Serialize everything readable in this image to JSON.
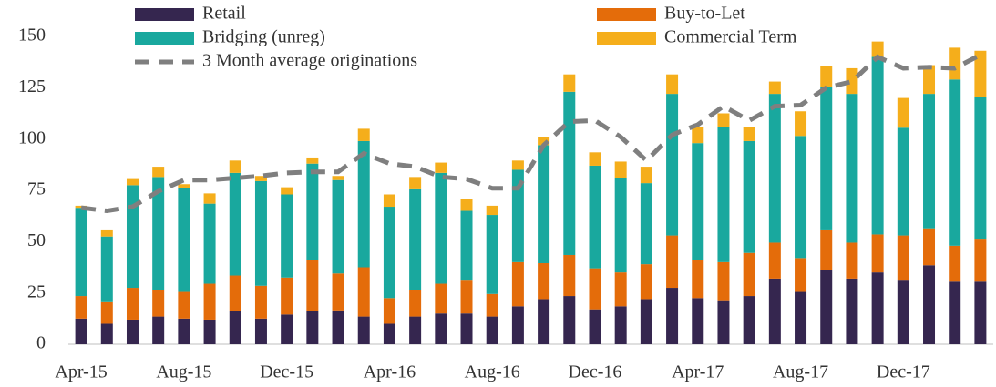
{
  "chart_data": {
    "type": "bar",
    "categories": [
      "Apr-15",
      null,
      null,
      null,
      "Aug-15",
      null,
      null,
      null,
      "Dec-15",
      null,
      null,
      null,
      "Apr-16",
      null,
      null,
      null,
      "Aug-16",
      null,
      null,
      null,
      "Dec-16",
      null,
      null,
      null,
      "Apr-17",
      null,
      null,
      null,
      "Aug-17",
      null,
      null,
      null,
      "Dec-17",
      null,
      null,
      null
    ],
    "series": [
      {
        "name": "Retail",
        "color": "#35264f",
        "values": [
          12.5,
          10,
          12,
          13.5,
          12.5,
          12,
          16,
          12.5,
          14.5,
          16,
          16.5,
          13.5,
          10,
          13.5,
          15,
          15,
          13.5,
          18.5,
          22,
          23.5,
          17,
          18.5,
          22,
          27.5,
          22.5,
          21,
          23.5,
          32,
          25.5,
          36,
          32,
          35,
          31,
          38.5,
          30.5,
          30.5
        ]
      },
      {
        "name": "Buy-to-Let",
        "color": "#e46c0a",
        "values": [
          11,
          10.5,
          15.5,
          13,
          13,
          17.5,
          17.5,
          16,
          18,
          25,
          18,
          24,
          12.5,
          13,
          14.5,
          16,
          11,
          21.5,
          17.5,
          20,
          20,
          16.5,
          17,
          25.5,
          18.5,
          19,
          21,
          17.5,
          16.5,
          19.5,
          17.5,
          18.5,
          22,
          18,
          17.5,
          20.5
        ]
      },
      {
        "name": "Bridging (unreg)",
        "color": "#19a89e",
        "values": [
          43,
          32,
          50,
          55,
          50.5,
          39,
          50,
          51,
          40.5,
          47,
          45.5,
          61.5,
          44.5,
          49,
          54,
          34,
          38.5,
          45,
          57.5,
          79.5,
          50,
          46,
          39.5,
          69,
          57,
          66,
          54.5,
          72.5,
          59.5,
          70,
          72.5,
          86.5,
          52.5,
          65.5,
          81,
          69.5
        ]
      },
      {
        "name": "Commercial Term",
        "color": "#f5ae1b",
        "values": [
          1,
          3,
          3,
          5,
          2,
          5,
          6,
          2.5,
          3.5,
          3,
          2,
          6,
          6,
          6,
          5,
          6,
          4.5,
          4.5,
          4,
          8.5,
          6.5,
          8,
          8,
          9.5,
          8,
          6.5,
          7,
          6,
          12,
          10,
          12.5,
          7.5,
          14.5,
          14,
          15.5,
          22.5
        ]
      },
      {
        "name": "3 Month average originations",
        "type": "line",
        "color": "#7f7f7f",
        "dashed": true,
        "values": [
          66.5,
          65,
          67,
          74.5,
          80,
          80,
          81,
          82,
          83.5,
          84,
          84,
          93,
          88,
          86.5,
          81.5,
          80.5,
          76,
          76,
          97,
          108.5,
          109,
          101,
          89.5,
          102,
          107,
          116,
          109,
          116,
          116.5,
          125,
          128,
          140,
          134.5,
          135,
          134.5,
          141
        ]
      }
    ],
    "ylim": [
      0,
      150
    ],
    "yticks": [
      0,
      25,
      50,
      75,
      100,
      125,
      150
    ]
  }
}
